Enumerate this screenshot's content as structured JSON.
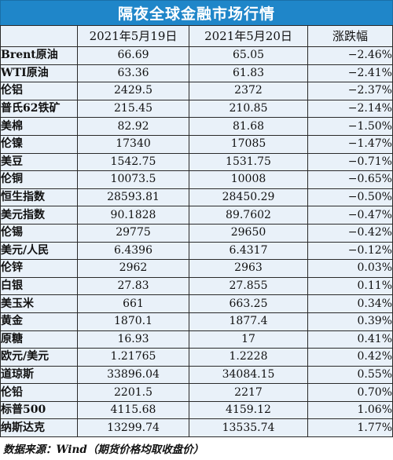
{
  "title": "隔夜全球金融市场行情",
  "header": {
    "col1": "2021年5月19日",
    "col2": "2021年5月20日",
    "col3": "涨跌幅"
  },
  "rows": [
    {
      "name": "Brent原油",
      "d1": "66.69",
      "d2": "65.05",
      "chg": "−2.46%"
    },
    {
      "name": "WTI原油",
      "d1": "63.36",
      "d2": "61.83",
      "chg": "−2.41%"
    },
    {
      "name": "伦铝",
      "d1": "2429.5",
      "d2": "2372",
      "chg": "−2.37%"
    },
    {
      "name": "普氏62铁矿",
      "d1": "215.45",
      "d2": "210.85",
      "chg": "−2.14%"
    },
    {
      "name": "美棉",
      "d1": "82.92",
      "d2": "81.68",
      "chg": "−1.50%"
    },
    {
      "name": "伦镍",
      "d1": "17340",
      "d2": "17085",
      "chg": "−1.47%"
    },
    {
      "name": "美豆",
      "d1": "1542.75",
      "d2": "1531.75",
      "chg": "−0.71%"
    },
    {
      "name": "伦铜",
      "d1": "10073.5",
      "d2": "10008",
      "chg": "−0.65%"
    },
    {
      "name": "恒生指数",
      "d1": "28593.81",
      "d2": "28450.29",
      "chg": "−0.50%"
    },
    {
      "name": "美元指数",
      "d1": "90.1828",
      "d2": "89.7602",
      "chg": "−0.47%"
    },
    {
      "name": "伦锡",
      "d1": "29775",
      "d2": "29650",
      "chg": "−0.42%"
    },
    {
      "name": "美元/人民",
      "d1": "6.4396",
      "d2": "6.4317",
      "chg": "−0.12%"
    },
    {
      "name": "伦锌",
      "d1": "2962",
      "d2": "2963",
      "chg": "0.03%"
    },
    {
      "name": "白银",
      "d1": "27.83",
      "d2": "27.855",
      "chg": "0.11%"
    },
    {
      "name": "美玉米",
      "d1": "661",
      "d2": "663.25",
      "chg": "0.34%"
    },
    {
      "name": "黄金",
      "d1": "1870.1",
      "d2": "1877.4",
      "chg": "0.39%"
    },
    {
      "name": "原糖",
      "d1": "16.93",
      "d2": "17",
      "chg": "0.41%"
    },
    {
      "name": "欧元/美元",
      "d1": "1.21765",
      "d2": "1.2228",
      "chg": "0.42%"
    },
    {
      "name": "道琼斯",
      "d1": "33896.04",
      "d2": "34084.15",
      "chg": "0.55%"
    },
    {
      "name": "伦铅",
      "d1": "2201.5",
      "d2": "2217",
      "chg": "0.70%"
    },
    {
      "name": "标普500",
      "d1": "4115.68",
      "d2": "4159.12",
      "chg": "1.06%"
    },
    {
      "name": "纳斯达克",
      "d1": "13299.74",
      "d2": "13535.74",
      "chg": "1.77%"
    }
  ],
  "footer": "数据来源：Wind（期货价格均取收盘价）",
  "colors": {
    "title_bg": "#1f86c9",
    "table_bg": "#e9f1f9"
  }
}
